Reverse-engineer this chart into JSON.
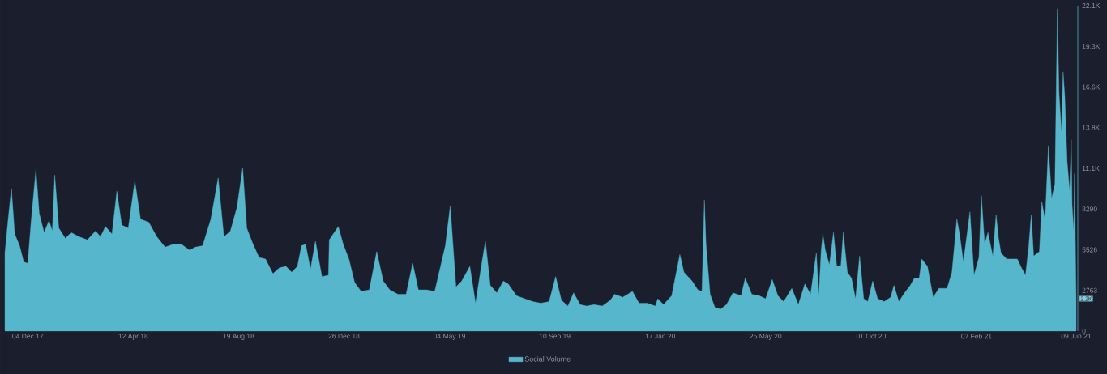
{
  "chart_data": {
    "type": "area",
    "x": [
      "2017-11-06",
      "2017-11-10",
      "2017-11-14",
      "2017-11-18",
      "2017-11-24",
      "2017-11-29",
      "2017-12-04",
      "2017-12-08",
      "2017-12-14",
      "2017-12-18",
      "2017-12-24",
      "2017-12-30",
      "2018-01-03",
      "2018-01-06",
      "2018-01-11",
      "2018-01-19",
      "2018-01-26",
      "2018-02-05",
      "2018-02-15",
      "2018-02-25",
      "2018-03-03",
      "2018-03-09",
      "2018-03-17",
      "2018-03-23",
      "2018-03-29",
      "2018-04-06",
      "2018-04-14",
      "2018-04-21",
      "2018-05-01",
      "2018-05-11",
      "2018-05-21",
      "2018-05-31",
      "2018-06-10",
      "2018-06-20",
      "2018-06-27",
      "2018-07-06",
      "2018-07-16",
      "2018-07-25",
      "2018-08-01",
      "2018-08-09",
      "2018-08-17",
      "2018-08-24",
      "2018-08-29",
      "2018-09-05",
      "2018-09-13",
      "2018-09-21",
      "2018-09-30",
      "2018-10-08",
      "2018-10-16",
      "2018-10-23",
      "2018-10-30",
      "2018-11-04",
      "2018-11-09",
      "2018-11-15",
      "2018-11-21",
      "2018-11-29",
      "2018-12-07",
      "2018-12-08",
      "2018-12-19",
      "2018-12-25",
      "2019-01-01",
      "2019-01-08",
      "2019-01-16",
      "2019-01-26",
      "2019-02-04",
      "2019-02-12",
      "2019-02-20",
      "2019-03-02",
      "2019-03-12",
      "2019-03-20",
      "2019-03-27",
      "2019-04-06",
      "2019-04-16",
      "2019-04-29",
      "2019-05-05",
      "2019-05-12",
      "2019-05-19",
      "2019-05-29",
      "2019-06-05",
      "2019-06-12",
      "2019-06-17",
      "2019-06-23",
      "2019-07-01",
      "2019-07-09",
      "2019-07-15",
      "2019-07-25",
      "2019-08-04",
      "2019-08-14",
      "2019-08-24",
      "2019-09-03",
      "2019-09-11",
      "2019-09-18",
      "2019-09-26",
      "2019-10-03",
      "2019-10-11",
      "2019-10-19",
      "2019-10-28",
      "2019-11-07",
      "2019-11-17",
      "2019-11-22",
      "2019-12-02",
      "2019-12-14",
      "2019-12-22",
      "2020-01-01",
      "2020-01-11",
      "2020-01-14",
      "2020-01-21",
      "2020-01-31",
      "2020-02-10",
      "2020-02-15",
      "2020-02-25",
      "2020-03-03",
      "2020-03-08",
      "2020-03-11",
      "2020-03-13",
      "2020-03-18",
      "2020-03-24",
      "2020-03-31",
      "2020-04-07",
      "2020-04-15",
      "2020-04-25",
      "2020-04-30",
      "2020-05-08",
      "2020-05-17",
      "2020-05-25",
      "2020-06-02",
      "2020-06-09",
      "2020-06-16",
      "2020-06-26",
      "2020-07-04",
      "2020-07-12",
      "2020-07-19",
      "2020-07-26",
      "2020-07-29",
      "2020-08-01",
      "2020-08-03",
      "2020-08-06",
      "2020-08-11",
      "2020-08-16",
      "2020-08-20",
      "2020-08-25",
      "2020-08-28",
      "2020-09-02",
      "2020-09-07",
      "2020-09-12",
      "2020-09-17",
      "2020-09-22",
      "2020-09-27",
      "2020-10-03",
      "2020-10-09",
      "2020-10-17",
      "2020-10-25",
      "2020-10-29",
      "2020-11-04",
      "2020-11-11",
      "2020-11-18",
      "2020-11-23",
      "2020-11-29",
      "2020-12-02",
      "2020-12-09",
      "2020-12-16",
      "2020-12-23",
      "2021-01-02",
      "2021-01-08",
      "2021-01-14",
      "2021-01-17",
      "2021-01-22",
      "2021-01-30",
      "2021-02-04",
      "2021-02-10",
      "2021-02-13",
      "2021-02-17",
      "2021-02-21",
      "2021-02-27",
      "2021-03-03",
      "2021-03-06",
      "2021-03-09",
      "2021-03-16",
      "2021-03-23",
      "2021-03-29",
      "2021-04-03",
      "2021-04-08",
      "2021-04-12",
      "2021-04-15",
      "2021-04-18",
      "2021-04-25",
      "2021-04-28",
      "2021-05-02",
      "2021-05-06",
      "2021-05-10",
      "2021-05-14",
      "2021-05-17",
      "2021-05-19",
      "2021-05-22",
      "2021-05-24",
      "2021-05-26",
      "2021-05-29",
      "2021-06-01",
      "2021-06-03",
      "2021-06-04",
      "2021-06-06",
      "2021-06-07",
      "2021-06-09"
    ],
    "series": [
      {
        "name": "Social Volume",
        "color": "#56b6cb",
        "values": [
          5300,
          7600,
          9700,
          6600,
          5800,
          4700,
          4600,
          7400,
          11000,
          8000,
          6700,
          7500,
          6800,
          10600,
          7000,
          6300,
          6700,
          6400,
          6200,
          6800,
          6400,
          7100,
          6600,
          9500,
          7200,
          7000,
          10200,
          7600,
          7400,
          6400,
          5700,
          5900,
          5900,
          5500,
          5700,
          5800,
          7600,
          10400,
          6400,
          6800,
          8400,
          11100,
          7000,
          6000,
          5000,
          4900,
          3900,
          4300,
          4400,
          4000,
          4400,
          5800,
          5900,
          4200,
          6100,
          3700,
          3800,
          6200,
          7100,
          5900,
          4900,
          3300,
          2700,
          2800,
          5400,
          3400,
          2800,
          2500,
          2500,
          4600,
          2800,
          2800,
          2700,
          5800,
          8500,
          3000,
          3400,
          4400,
          1900,
          4400,
          6100,
          3100,
          2600,
          3400,
          3200,
          2400,
          2200,
          2000,
          1900,
          2000,
          3700,
          2100,
          1700,
          2600,
          1800,
          1700,
          1800,
          1700,
          2100,
          2500,
          2300,
          2700,
          1900,
          1900,
          1700,
          2200,
          1800,
          2400,
          5200,
          4000,
          3400,
          2800,
          2700,
          8900,
          5900,
          2500,
          1600,
          1500,
          1800,
          2600,
          2400,
          3600,
          2500,
          2400,
          2200,
          3500,
          2400,
          2000,
          2900,
          1800,
          3200,
          2500,
          5300,
          2400,
          5500,
          6600,
          5500,
          4500,
          6700,
          4400,
          4400,
          6700,
          4000,
          3600,
          2200,
          5100,
          2200,
          2000,
          3400,
          2200,
          2000,
          2300,
          3100,
          2000,
          2600,
          3100,
          3600,
          3600,
          4900,
          4400,
          2300,
          2900,
          2900,
          4000,
          7600,
          6700,
          4700,
          8100,
          3800,
          5000,
          9200,
          5900,
          6700,
          5100,
          7900,
          6300,
          5300,
          4900,
          4900,
          4900,
          4300,
          3800,
          5800,
          7900,
          5100,
          5400,
          8800,
          7500,
          12600,
          9000,
          10000,
          21900,
          16200,
          13500,
          17600,
          16000,
          11500,
          9500,
          13000,
          8600,
          6800,
          10700,
          2200
        ]
      }
    ],
    "xlim": [
      "2017-11-04",
      "2021-06-11"
    ],
    "xticks": [
      {
        "value": "2017-12-04",
        "label": "04 Dec 17"
      },
      {
        "value": "2018-04-12",
        "label": "12 Apr 18"
      },
      {
        "value": "2018-08-19",
        "label": "19 Aug 18"
      },
      {
        "value": "2018-12-26",
        "label": "26 Dec 18"
      },
      {
        "value": "2019-05-04",
        "label": "04 May 19"
      },
      {
        "value": "2019-09-10",
        "label": "10 Sep 19"
      },
      {
        "value": "2020-01-17",
        "label": "17 Jan 20"
      },
      {
        "value": "2020-05-25",
        "label": "25 May 20"
      },
      {
        "value": "2020-10-01",
        "label": "01 Oct 20"
      },
      {
        "value": "2021-02-07",
        "label": "07 Feb 21"
      },
      {
        "value": "2021-06-09",
        "label": "09 Jun 21"
      }
    ],
    "ylim": [
      0,
      22106
    ],
    "yticks": [
      0,
      2763,
      5526,
      8290,
      {
        "value": 11053,
        "label": "11.1K"
      },
      {
        "value": 13816,
        "label": "13.8K"
      },
      {
        "value": 16579,
        "label": "16.6K"
      },
      {
        "value": 19342,
        "label": "19.3K"
      },
      {
        "value": 22106,
        "label": "22.1K"
      }
    ],
    "annotations": [
      {
        "text": "2.2K",
        "x": "2021-06-09",
        "y": 2200
      }
    ],
    "legend": "bottom",
    "grid": false
  }
}
